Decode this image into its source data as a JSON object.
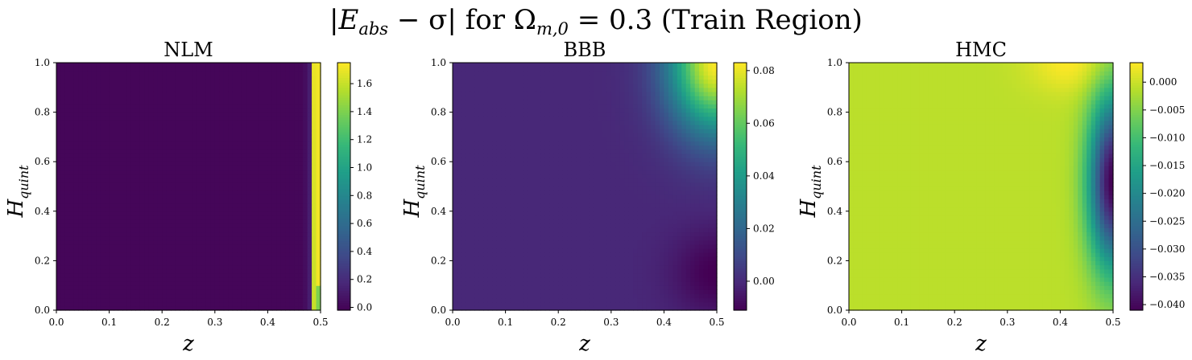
{
  "figure": {
    "title": "|E_abs − σ| for Ω_m,0 = 0.3 (Train Region)",
    "title_parts": {
      "bar": "|",
      "var": "E",
      "var_sub": "abs",
      "minus": " − σ| for Ω",
      "omega_sub": "m,0",
      "rest": " = 0.3 (Train Region)"
    }
  },
  "chart_data": [
    {
      "type": "heatmap",
      "title": "NLM",
      "xlabel": "z",
      "ylabel": "H",
      "ylabel_sub": "quint",
      "xlim": [
        0.0,
        0.5
      ],
      "ylim": [
        0.0,
        1.0
      ],
      "xticks": [
        "0.0",
        "0.1",
        "0.2",
        "0.3",
        "0.4",
        "0.5"
      ],
      "yticks": [
        "0.0",
        "0.2",
        "0.4",
        "0.6",
        "0.8",
        "1.0"
      ],
      "colormap": "viridis",
      "colorbar": {
        "min": -0.02,
        "max": 1.75,
        "ticks": [
          "0.0",
          "0.2",
          "0.4",
          "0.6",
          "0.8",
          "1.0",
          "1.2",
          "1.4",
          "1.6"
        ],
        "tick_values": [
          0.0,
          0.2,
          0.4,
          0.6,
          0.8,
          1.0,
          1.2,
          1.4,
          1.6
        ]
      },
      "pattern": "near 0.0 everywhere; sharp rise to ~1.7 in the column z ≈ 0.48–0.5"
    },
    {
      "type": "heatmap",
      "title": "BBB",
      "xlabel": "z",
      "ylabel": "H",
      "ylabel_sub": "quint",
      "xlim": [
        0.0,
        0.5
      ],
      "ylim": [
        0.0,
        1.0
      ],
      "xticks": [
        "0.0",
        "0.1",
        "0.2",
        "0.3",
        "0.4",
        "0.5"
      ],
      "yticks": [
        "0.0",
        "0.2",
        "0.4",
        "0.6",
        "0.8",
        "1.0"
      ],
      "colormap": "viridis",
      "colorbar": {
        "min": -0.011,
        "max": 0.083,
        "ticks": [
          "0.00",
          "0.02",
          "0.04",
          "0.06",
          "0.08"
        ],
        "tick_values": [
          0.0,
          0.02,
          0.04,
          0.06,
          0.08
        ]
      },
      "pattern": "~0.0 over most of the region; rises to ~0.08 at top-right corner (z≈0.5, H≈1.0); dips to ~-0.01 near z≈0.5, H≈0.15"
    },
    {
      "type": "heatmap",
      "title": "HMC",
      "xlabel": "z",
      "ylabel": "H",
      "ylabel_sub": "quint",
      "xlim": [
        0.0,
        0.5
      ],
      "ylim": [
        0.0,
        1.0
      ],
      "xticks": [
        "0.0",
        "0.1",
        "0.2",
        "0.3",
        "0.4",
        "0.5"
      ],
      "yticks": [
        "0.0",
        "0.2",
        "0.4",
        "0.6",
        "0.8",
        "1.0"
      ],
      "colormap": "viridis",
      "colorbar": {
        "min": -0.041,
        "max": 0.0035,
        "ticks": [
          "−0.040",
          "−0.035",
          "−0.030",
          "−0.025",
          "−0.020",
          "−0.015",
          "−0.010",
          "−0.005",
          "0.000"
        ],
        "tick_values": [
          -0.04,
          -0.035,
          -0.03,
          -0.025,
          -0.02,
          -0.015,
          -0.01,
          -0.005,
          0.0
        ]
      },
      "pattern": "~-0.001 over most of the region; slight peak ~0.003 near top (z≈0.42, H≈1.0); drops to ~-0.04 along right edge z≈0.5 around H≈0.5"
    }
  ]
}
